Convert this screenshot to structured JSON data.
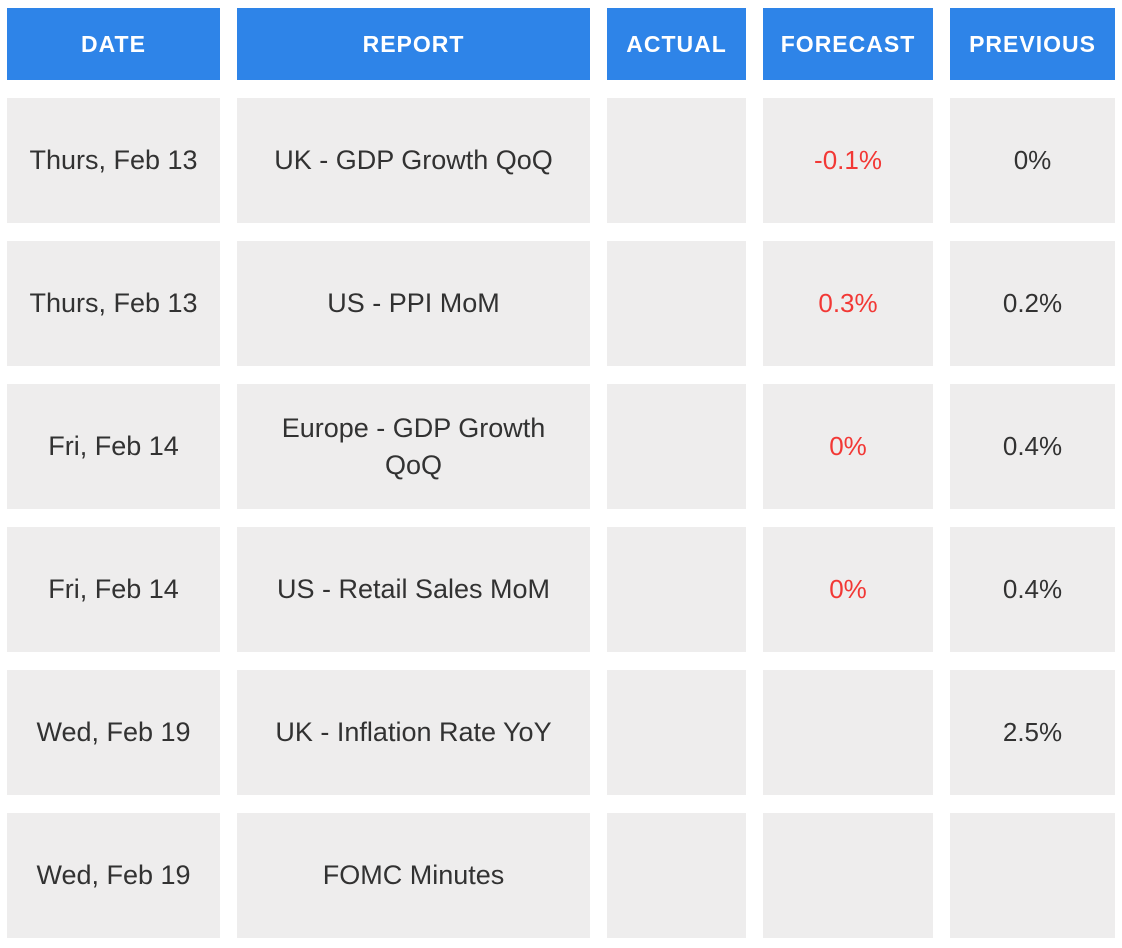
{
  "chart_data": {
    "type": "table",
    "columns": [
      "DATE",
      "REPORT",
      "ACTUAL",
      "FORECAST",
      "PREVIOUS"
    ],
    "rows": [
      {
        "date": "Thurs, Feb 13",
        "report": "UK - GDP Growth QoQ",
        "actual": "",
        "forecast": "-0.1%",
        "previous": "0%"
      },
      {
        "date": "Thurs, Feb 13",
        "report": "US - PPI MoM",
        "actual": "",
        "forecast": "0.3%",
        "previous": "0.2%"
      },
      {
        "date": "Fri, Feb 14",
        "report": "Europe - GDP Growth QoQ",
        "actual": "",
        "forecast": "0%",
        "previous": "0.4%"
      },
      {
        "date": "Fri, Feb 14",
        "report": "US - Retail Sales MoM",
        "actual": "",
        "forecast": "0%",
        "previous": "0.4%"
      },
      {
        "date": "Wed, Feb 19",
        "report": "UK - Inflation Rate YoY",
        "actual": "",
        "forecast": "",
        "previous": "2.5%"
      },
      {
        "date": "Wed, Feb 19",
        "report": "FOMC Minutes",
        "actual": "",
        "forecast": "",
        "previous": ""
      }
    ]
  },
  "colors": {
    "header_bg": "#2E84E8",
    "header_text": "#FFFFFF",
    "cell_bg": "#EEEDED",
    "body_text": "#323232",
    "forecast_text": "#F23835",
    "page_bg": "#FFFFFF"
  }
}
